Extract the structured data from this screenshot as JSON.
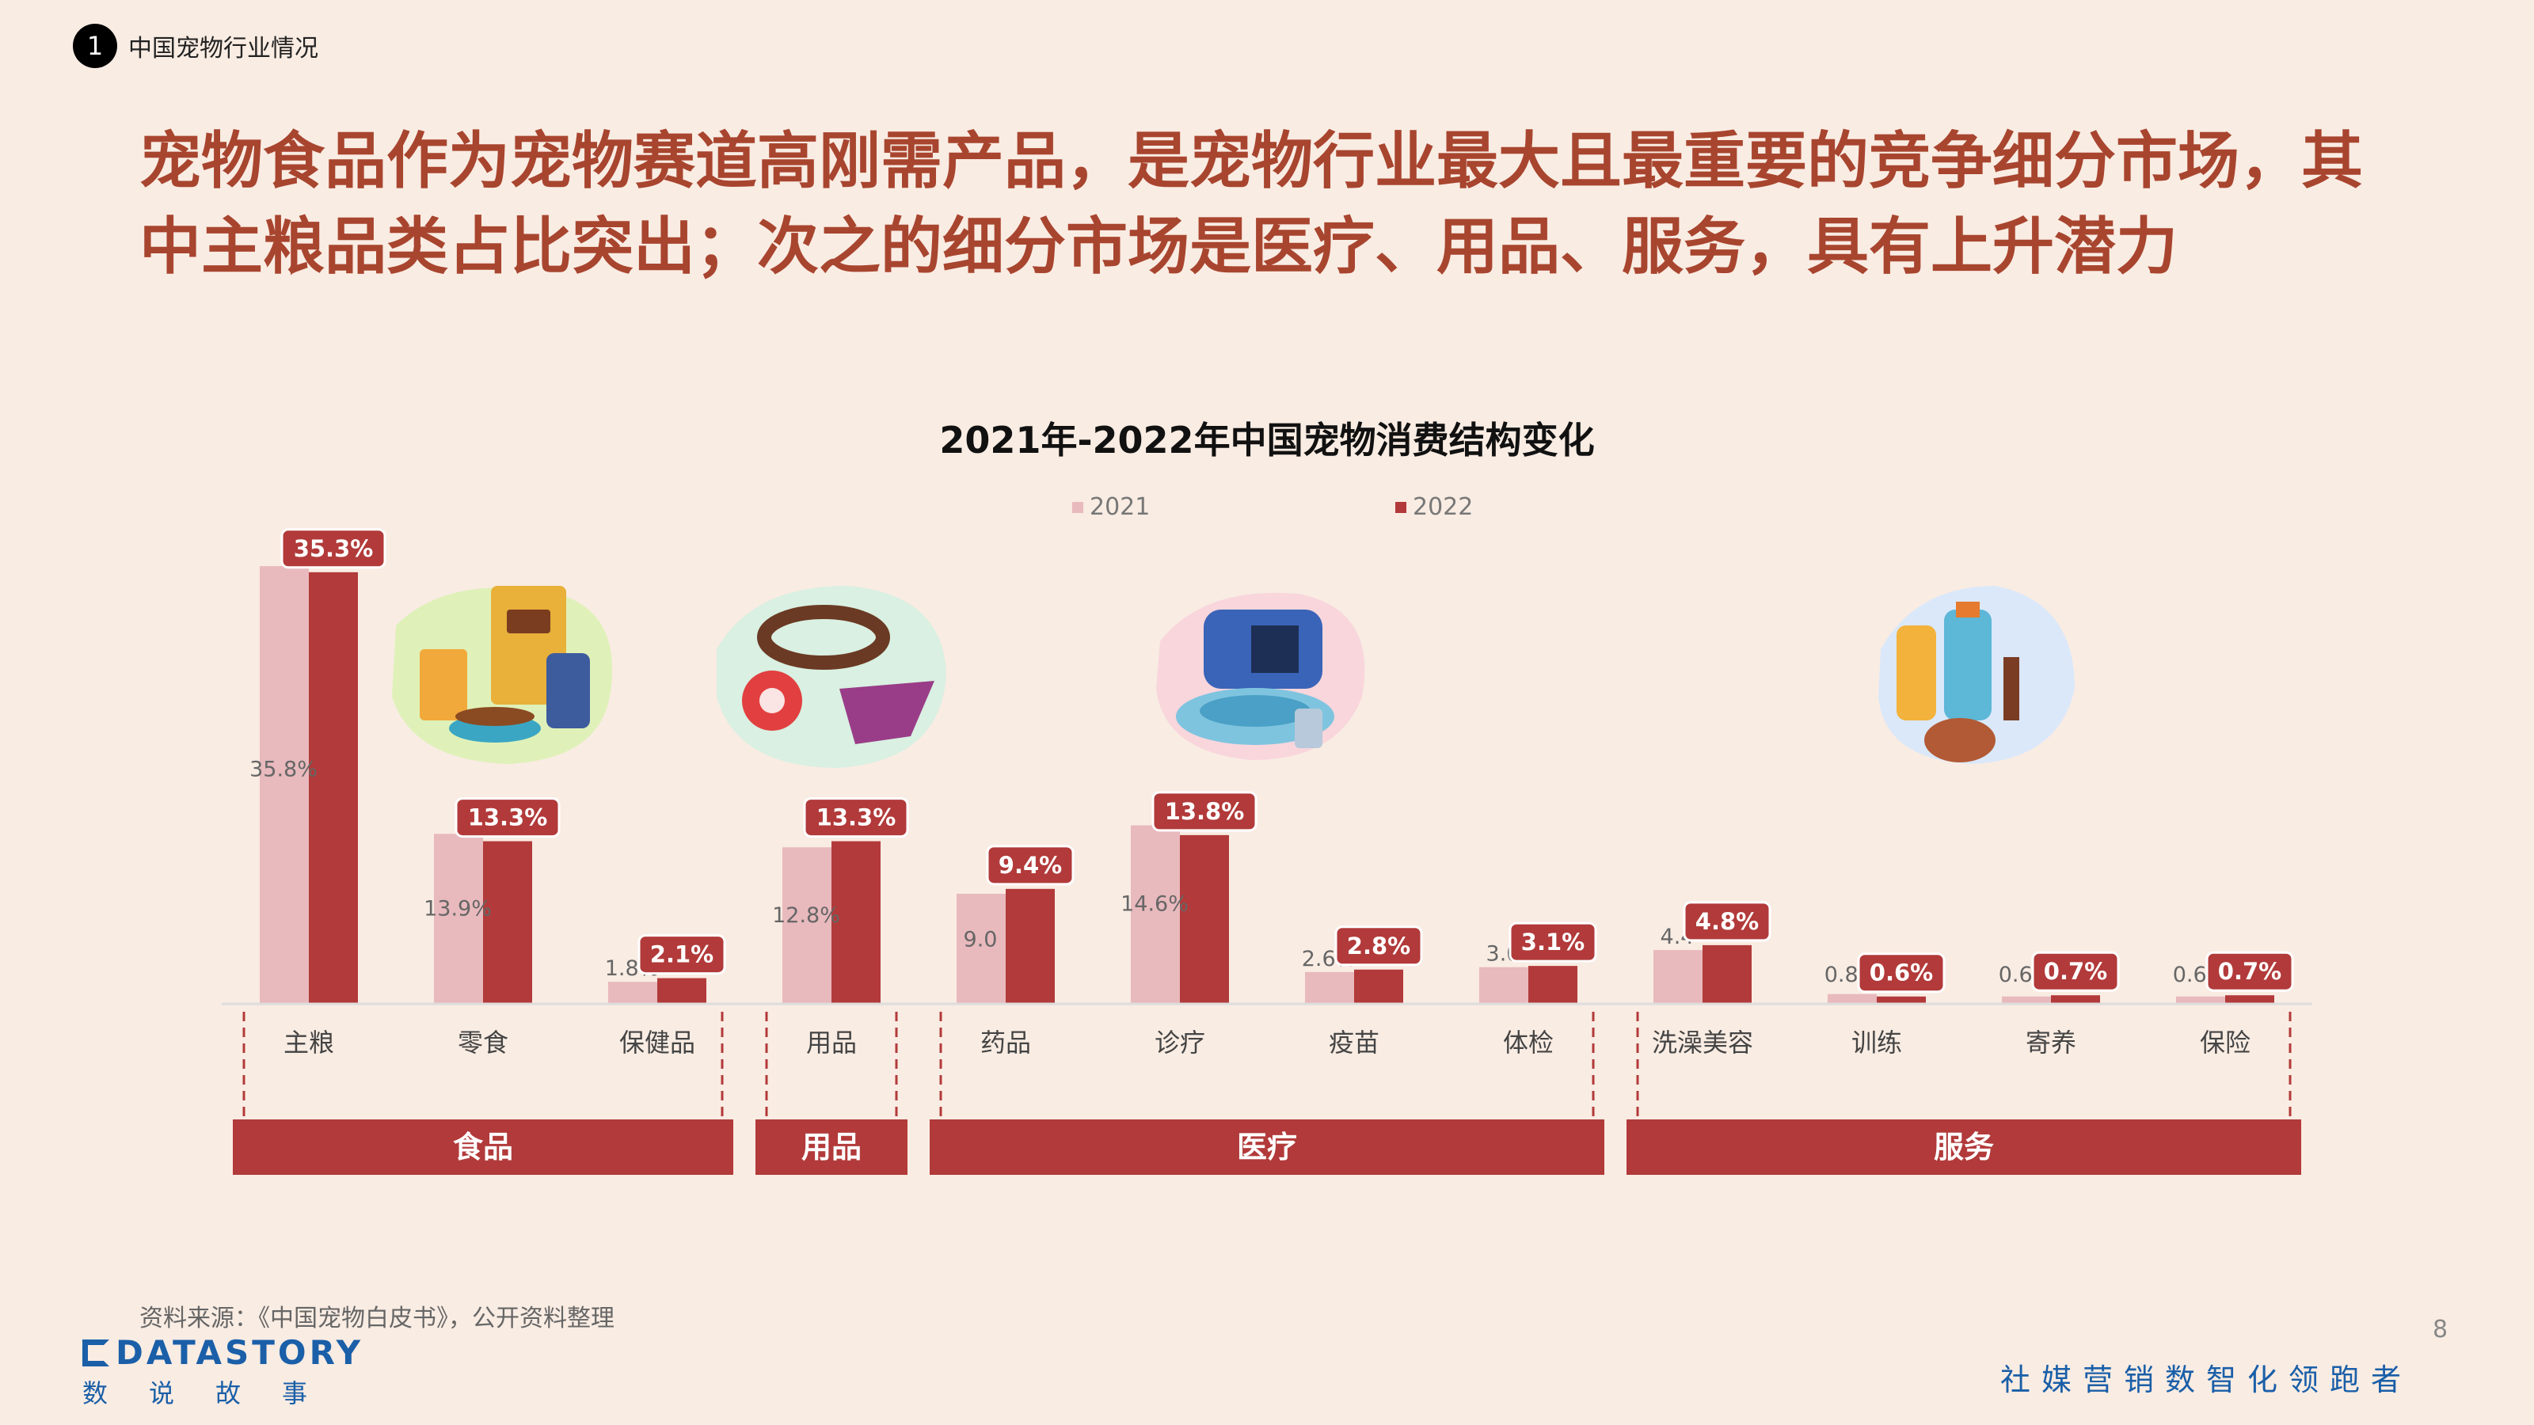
{
  "breadcrumb": {
    "number": "1",
    "text": "中国宠物行业情况"
  },
  "headline": "宠物食品作为宠物赛道高刚需产品，是宠物行业最大且最重要的竞争细分市场，其中主粮品类占比突出；次之的细分市场是医疗、用品、服务，具有上升潜力",
  "source": "资料来源：《中国宠物白皮书》，公开资料整理",
  "page_number": "8",
  "logo": {
    "main": "DATASTORY",
    "sub": "数说故事"
  },
  "slogan": "社媒营销数智化领跑者",
  "chart_data": {
    "type": "bar",
    "title": "2021年-2022年中国宠物消费结构变化",
    "legend_position": "top",
    "categories": [
      "主粮",
      "零食",
      "保健品",
      "用品",
      "药品",
      "诊疗",
      "疫苗",
      "体检",
      "洗澡美容",
      "训练",
      "寄养",
      "保险"
    ],
    "series": [
      {
        "name": "2021",
        "color": "#e8b9bd",
        "values": [
          35.8,
          13.9,
          1.8,
          12.8,
          9.0,
          14.6,
          2.6,
          3.0,
          4.4,
          0.8,
          0.6,
          0.6
        ],
        "labels": [
          "35.8%",
          "13.9%",
          "1.8%",
          "12.8%",
          "9.0",
          "14.6%",
          "2.6%",
          "3.0",
          "4.4",
          "0.8%",
          "0.6%",
          "0.6%"
        ]
      },
      {
        "name": "2022",
        "color": "#b23a3a",
        "values": [
          35.3,
          13.3,
          2.1,
          13.3,
          9.4,
          13.8,
          2.8,
          3.1,
          4.8,
          0.6,
          0.7,
          0.7
        ],
        "labels": [
          "35.3%",
          "13.3%",
          "2.1%",
          "13.3%",
          "9.4%",
          "13.8%",
          "2.8%",
          "3.1%",
          "4.8%",
          "0.6%",
          "0.7%",
          "0.7%"
        ]
      }
    ],
    "groups": [
      {
        "label": "食品",
        "start": 0,
        "end": 2
      },
      {
        "label": "用品",
        "start": 3,
        "end": 3
      },
      {
        "label": "医疗",
        "start": 4,
        "end": 7
      },
      {
        "label": "服务",
        "start": 8,
        "end": 11
      }
    ],
    "ylim": [
      0,
      36
    ]
  }
}
